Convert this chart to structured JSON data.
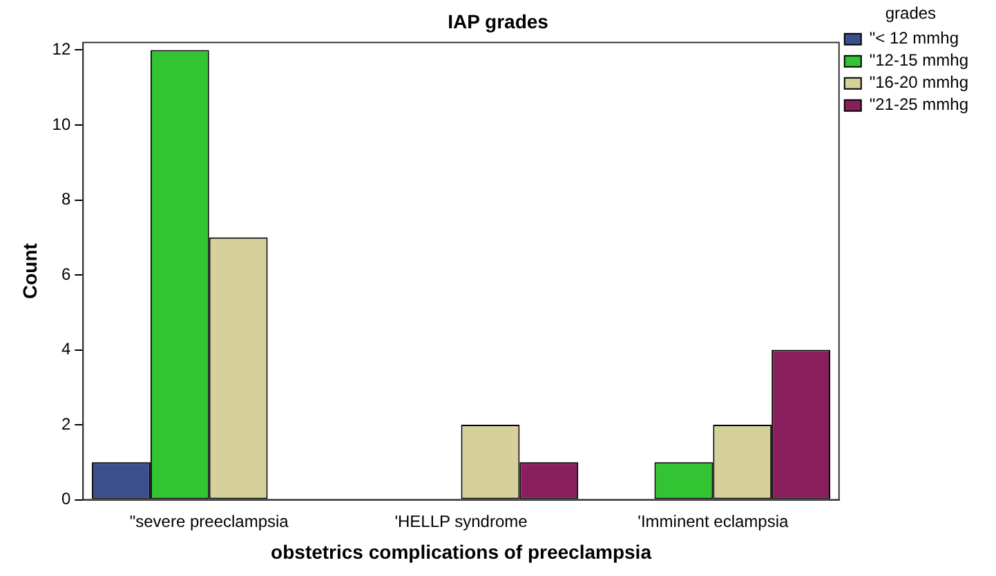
{
  "chart_data": {
    "type": "bar",
    "title": "IAP grades",
    "xlabel": "obstetrics complications of preeclampsia",
    "ylabel": "Count",
    "legend_title": "grades",
    "categories": [
      "\"severe preeclampsia",
      "'HELLP syndrome",
      "'Imminent eclampsia"
    ],
    "series": [
      {
        "name": "\"< 12 mmhg",
        "color": "#3b4f8c",
        "values": [
          1,
          null,
          null
        ]
      },
      {
        "name": "\"12-15 mmhg",
        "color": "#33c433",
        "values": [
          12,
          null,
          1
        ]
      },
      {
        "name": "\"16-20 mmhg",
        "color": "#d6d19a",
        "values": [
          7,
          2,
          2
        ]
      },
      {
        "name": "\"21-25 mmhg",
        "color": "#8a1f5e",
        "values": [
          null,
          1,
          4
        ]
      }
    ],
    "ylim": [
      0,
      12.2
    ],
    "yticks": [
      0,
      2,
      4,
      6,
      8,
      10,
      12
    ],
    "grid": false,
    "legend": "top right"
  }
}
